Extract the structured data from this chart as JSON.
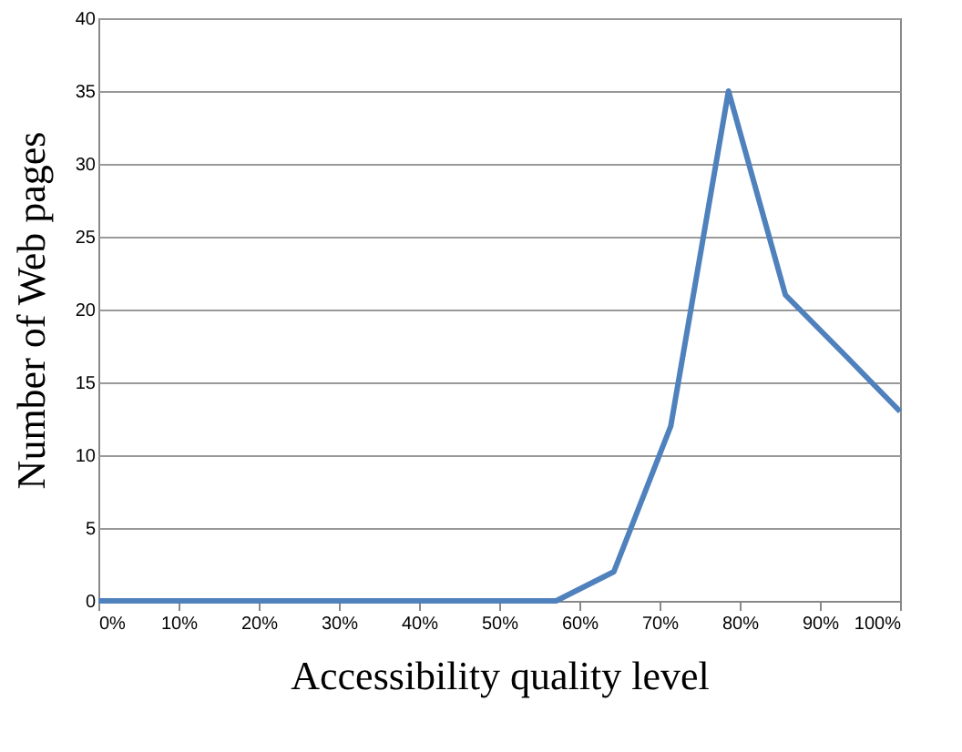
{
  "chart_data": {
    "type": "line",
    "xlabel": "Accessibility quality level",
    "ylabel": "Number of Web pages",
    "x": [
      0,
      7.1,
      14.3,
      21.4,
      28.6,
      35.7,
      42.9,
      50,
      57.1,
      64.3,
      71.4,
      78.6,
      85.7,
      92.9,
      100
    ],
    "series": [
      {
        "color": "#4f81bd",
        "values": [
          0,
          0,
          0,
          0,
          0,
          0,
          0,
          0,
          0,
          2,
          12,
          35,
          21,
          17,
          13
        ]
      }
    ],
    "xlim": [
      0,
      100
    ],
    "xticks": [
      {
        "value": 0,
        "label": "0%"
      },
      {
        "value": 10,
        "label": "10%"
      },
      {
        "value": 20,
        "label": "20%"
      },
      {
        "value": 30,
        "label": "30%"
      },
      {
        "value": 40,
        "label": "40%"
      },
      {
        "value": 50,
        "label": "50%"
      },
      {
        "value": 60,
        "label": "60%"
      },
      {
        "value": 70,
        "label": "70%"
      },
      {
        "value": 80,
        "label": "80%"
      },
      {
        "value": 90,
        "label": "90%"
      },
      {
        "value": 100,
        "label": "100%"
      }
    ],
    "ylim": [
      0,
      40
    ],
    "yticks": [
      0,
      5,
      10,
      15,
      20,
      25,
      30,
      35,
      40
    ],
    "grid": "y",
    "marker": "none",
    "line_style": "solid"
  }
}
